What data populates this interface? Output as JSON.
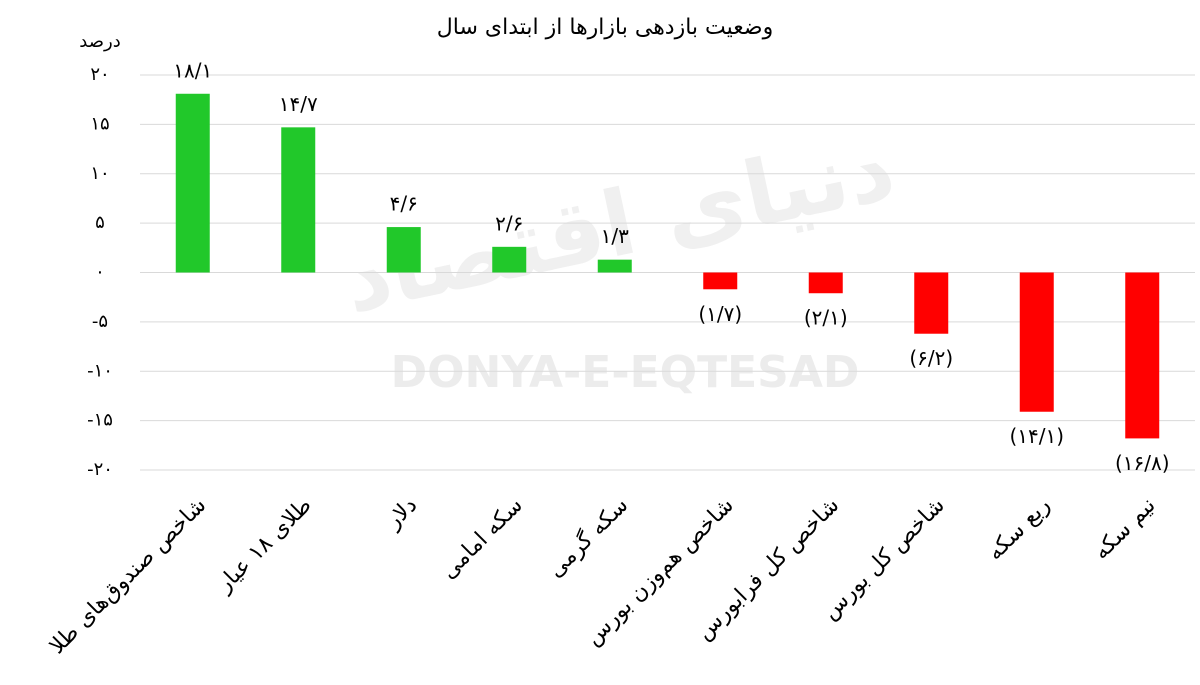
{
  "chart_data": {
    "type": "bar",
    "title": "وضعیت بازدهی بازارها از ابتدای سال",
    "y_label": "درصد",
    "watermark": "DONYA-E-EQTESAD",
    "watermark_fa": "دنیای اقتصاد",
    "categories": [
      "شاخص صندوق‌های طلا",
      "طلای ۱۸ عیار",
      "دلار",
      "سکه امامی",
      "سکه گرمی",
      "شاخص هم‌وزن بورس",
      "شاخص کل فرابورس",
      "شاخص کل بورس",
      "ربع سکه",
      "نیم سکه"
    ],
    "values": [
      18.1,
      14.7,
      4.6,
      2.6,
      1.3,
      -1.7,
      -2.1,
      -6.2,
      -14.1,
      -16.8
    ],
    "value_labels": [
      "۱۸/۱",
      "۱۴/۷",
      "۴/۶",
      "۲/۶",
      "۱/۳",
      "(۱/۷)",
      "(۲/۱)",
      "(۶/۲)",
      "(۱۴/۱)",
      "(۱۶/۸)"
    ],
    "positive_color": "#21c82a",
    "negative_color": "#ff0000",
    "ylim": [
      -20,
      20
    ],
    "yticks": [
      {
        "value": -20,
        "label": "-۲۰"
      },
      {
        "value": -15,
        "label": "-۱۵"
      },
      {
        "value": -10,
        "label": "-۱۰"
      },
      {
        "value": -5,
        "label": "-۵"
      },
      {
        "value": 0,
        "label": "۰"
      },
      {
        "value": 5,
        "label": "۵"
      },
      {
        "value": 10,
        "label": "۱۰"
      },
      {
        "value": 15,
        "label": "۱۵"
      },
      {
        "value": 20,
        "label": "۲۰"
      }
    ],
    "grid": true
  }
}
